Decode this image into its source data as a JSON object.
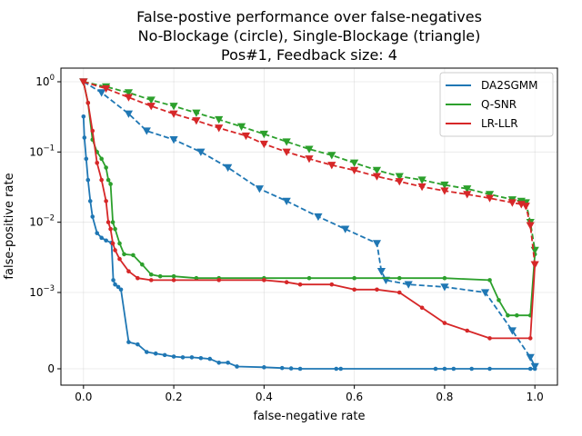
{
  "chart_data": {
    "type": "line",
    "title_lines": [
      "False-postive performance over false-negatives",
      "No-Blockage (circle), Single-Blockage (triangle)",
      "Pos#1, Feedback size: 4"
    ],
    "xlabel": "false-negative rate",
    "ylabel": "false-positive rate",
    "xlim": [
      -0.05,
      1.05
    ],
    "yscale": "symlog (linthresh 1e-3)",
    "x_ticks": [
      {
        "value": 0.0,
        "label": "0.0"
      },
      {
        "value": 0.2,
        "label": "0.2"
      },
      {
        "value": 0.4,
        "label": "0.4"
      },
      {
        "value": 0.6,
        "label": "0.6"
      },
      {
        "value": 0.8,
        "label": "0.8"
      },
      {
        "value": 1.0,
        "label": "1.0"
      }
    ],
    "y_ticks": [
      {
        "value": 0,
        "base": "0",
        "exp": ""
      },
      {
        "value": 0.001,
        "base": "10",
        "exp": "−3"
      },
      {
        "value": 0.01,
        "base": "10",
        "exp": "−2"
      },
      {
        "value": 0.1,
        "base": "10",
        "exp": "−1"
      },
      {
        "value": 1,
        "base": "10",
        "exp": "0"
      }
    ],
    "grid": true,
    "legend_position": "top-right",
    "legend": [
      {
        "name": "DA2SGMM",
        "color": "#1f77b4"
      },
      {
        "name": "Q-SNR",
        "color": "#2ca02c"
      },
      {
        "name": "LR-LLR",
        "color": "#d62728"
      }
    ],
    "series": [
      {
        "name": "DA2SGMM",
        "scenario": "No-Blockage",
        "marker": "circle",
        "line": "solid",
        "color": "#1f77b4",
        "x": [
          0.0,
          0.002,
          0.006,
          0.01,
          0.015,
          0.02,
          0.03,
          0.04,
          0.05,
          0.062,
          0.066,
          0.07,
          0.077,
          0.083,
          0.1,
          0.12,
          0.14,
          0.16,
          0.18,
          0.2,
          0.22,
          0.24,
          0.26,
          0.28,
          0.3,
          0.32,
          0.34,
          0.4,
          0.44,
          0.46,
          0.48,
          0.56,
          0.57,
          0.78,
          0.8,
          0.82,
          0.86,
          0.9,
          0.99,
          1.0
        ],
        "y": [
          0.32,
          0.16,
          0.08,
          0.04,
          0.02,
          0.012,
          0.007,
          0.006,
          0.0055,
          0.0051,
          0.0015,
          0.0013,
          0.0012,
          0.0011,
          0.00035,
          0.00032,
          0.00022,
          0.0002,
          0.00018,
          0.00016,
          0.00015,
          0.00015,
          0.00014,
          0.00013,
          8e-05,
          8e-05,
          3e-05,
          2e-05,
          1e-05,
          5e-06,
          0.0,
          0.0,
          0.0,
          0.0,
          0.0,
          0.0,
          0.0,
          0.0,
          0.0,
          0.0
        ]
      },
      {
        "name": "DA2SGMM",
        "scenario": "Single-Blockage",
        "marker": "triangle",
        "line": "dashed",
        "color": "#1f77b4",
        "x": [
          0.0,
          0.04,
          0.1,
          0.14,
          0.2,
          0.26,
          0.32,
          0.39,
          0.45,
          0.52,
          0.58,
          0.65,
          0.66,
          0.67,
          0.72,
          0.8,
          0.89,
          0.95,
          0.99,
          1.0
        ],
        "y": [
          1.0,
          0.7,
          0.35,
          0.2,
          0.15,
          0.1,
          0.06,
          0.03,
          0.02,
          0.012,
          0.008,
          0.005,
          0.002,
          0.0015,
          0.0013,
          0.0012,
          0.001,
          0.0005,
          0.00015,
          3e-05
        ]
      },
      {
        "name": "Q-SNR",
        "scenario": "No-Blockage",
        "marker": "circle",
        "line": "solid",
        "color": "#2ca02c",
        "x": [
          0.0,
          0.01,
          0.02,
          0.03,
          0.04,
          0.05,
          0.055,
          0.06,
          0.065,
          0.07,
          0.08,
          0.09,
          0.11,
          0.13,
          0.15,
          0.17,
          0.2,
          0.25,
          0.3,
          0.4,
          0.5,
          0.6,
          0.7,
          0.8,
          0.9,
          0.92,
          0.94,
          0.96,
          0.99,
          1.0
        ],
        "y": [
          1.0,
          0.5,
          0.15,
          0.1,
          0.08,
          0.06,
          0.04,
          0.035,
          0.01,
          0.008,
          0.005,
          0.0035,
          0.0034,
          0.0025,
          0.0018,
          0.0017,
          0.0017,
          0.0016,
          0.0016,
          0.0016,
          0.0016,
          0.0016,
          0.0016,
          0.0016,
          0.0015,
          0.0009,
          0.0007,
          0.0007,
          0.0007,
          0.0035
        ]
      },
      {
        "name": "Q-SNR",
        "scenario": "Single-Blockage",
        "marker": "triangle",
        "line": "dashed",
        "color": "#2ca02c",
        "x": [
          0.0,
          0.05,
          0.1,
          0.15,
          0.2,
          0.25,
          0.3,
          0.35,
          0.4,
          0.45,
          0.5,
          0.55,
          0.6,
          0.65,
          0.7,
          0.75,
          0.8,
          0.85,
          0.9,
          0.95,
          0.97,
          0.98,
          0.99,
          1.0
        ],
        "y": [
          1.0,
          0.85,
          0.7,
          0.55,
          0.45,
          0.36,
          0.29,
          0.23,
          0.18,
          0.14,
          0.11,
          0.09,
          0.07,
          0.055,
          0.045,
          0.04,
          0.034,
          0.03,
          0.025,
          0.021,
          0.02,
          0.019,
          0.01,
          0.004
        ]
      },
      {
        "name": "LR-LLR",
        "scenario": "No-Blockage",
        "marker": "circle",
        "line": "solid",
        "color": "#d62728",
        "x": [
          0.0,
          0.01,
          0.02,
          0.03,
          0.04,
          0.05,
          0.055,
          0.06,
          0.065,
          0.07,
          0.08,
          0.1,
          0.12,
          0.15,
          0.2,
          0.3,
          0.4,
          0.45,
          0.48,
          0.55,
          0.6,
          0.65,
          0.7,
          0.75,
          0.8,
          0.85,
          0.9,
          0.99,
          1.0
        ],
        "y": [
          1.0,
          0.5,
          0.2,
          0.07,
          0.04,
          0.02,
          0.01,
          0.008,
          0.005,
          0.004,
          0.003,
          0.002,
          0.0016,
          0.0015,
          0.0015,
          0.0015,
          0.0015,
          0.0014,
          0.0013,
          0.0013,
          0.0011,
          0.0011,
          0.001,
          0.0008,
          0.0006,
          0.0005,
          0.0004,
          0.0004,
          0.0025
        ]
      },
      {
        "name": "LR-LLR",
        "scenario": "Single-Blockage",
        "marker": "triangle",
        "line": "dashed",
        "color": "#d62728",
        "x": [
          0.0,
          0.05,
          0.1,
          0.15,
          0.2,
          0.25,
          0.3,
          0.36,
          0.4,
          0.45,
          0.5,
          0.55,
          0.6,
          0.65,
          0.7,
          0.75,
          0.8,
          0.85,
          0.9,
          0.95,
          0.97,
          0.98,
          0.99,
          1.0
        ],
        "y": [
          1.0,
          0.8,
          0.6,
          0.45,
          0.35,
          0.28,
          0.22,
          0.17,
          0.13,
          0.1,
          0.08,
          0.065,
          0.055,
          0.045,
          0.038,
          0.032,
          0.028,
          0.025,
          0.022,
          0.019,
          0.018,
          0.017,
          0.009,
          0.0025
        ]
      }
    ]
  }
}
